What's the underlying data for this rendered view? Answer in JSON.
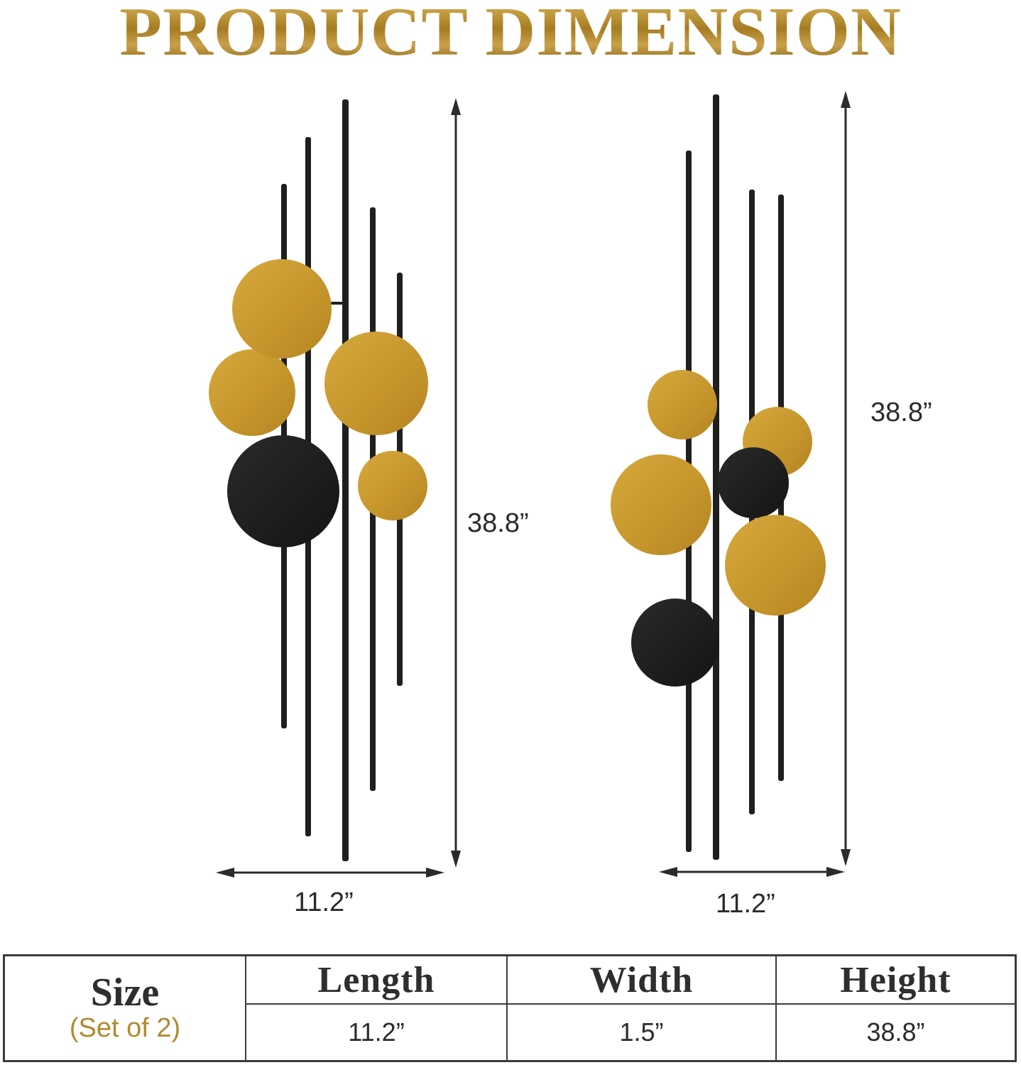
{
  "title": "PRODUCT DIMENSION",
  "colors": {
    "gold": "#c9992e",
    "black": "#1c1c1c",
    "title_gold": "#b08a2e"
  },
  "left_item": {
    "height_label": "38.8”",
    "width_label": "11.2”"
  },
  "right_item": {
    "height_label": "38.8”",
    "width_label": "11.2”"
  },
  "table": {
    "row_header": "Size",
    "row_sub": "(Set of 2)",
    "columns": [
      "Length",
      "Width",
      "Height"
    ],
    "values": [
      "11.2”",
      "1.5”",
      "38.8”"
    ]
  }
}
